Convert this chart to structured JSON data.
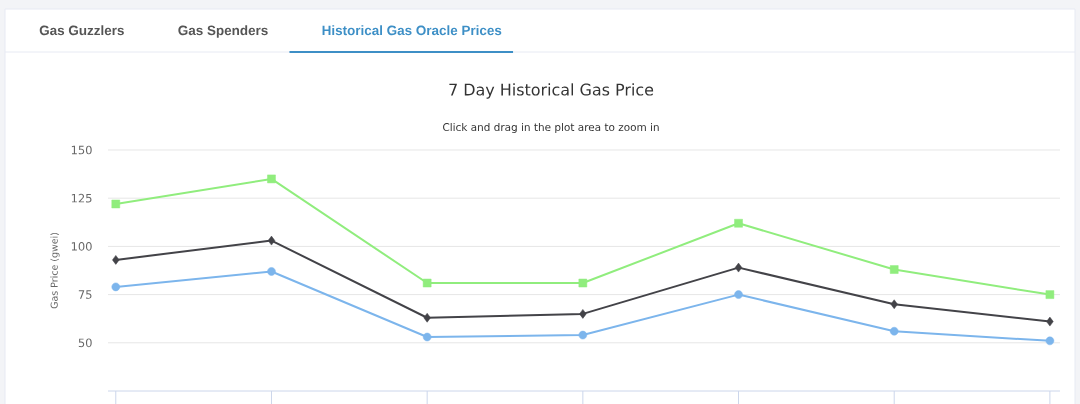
{
  "chart_data": {
    "type": "line",
    "title": "7 Day Historical Gas Price",
    "subtitle": "Click and drag in the plot area to zoom in",
    "annotations": [
      "Gas Guzzlers",
      "Gas Spenders",
      "Historical Gas Oracle Prices"
    ],
    "ylabel": "Gas Price (gwei)",
    "categories": [
      null,
      null,
      null,
      null,
      null,
      null,
      null
    ],
    "series": [
      {
        "color": "#90ed7d",
        "marker": "square",
        "values": [
          122,
          135,
          81,
          81,
          112,
          88,
          75
        ]
      },
      {
        "color": "#434348",
        "marker": "diamond",
        "values": [
          93,
          103,
          63,
          65,
          89,
          70,
          61
        ]
      },
      {
        "color": "#7cb5ec",
        "marker": "circle",
        "values": [
          79,
          87,
          53,
          54,
          75,
          56,
          51
        ]
      }
    ],
    "ylim": [
      25,
      150
    ],
    "yticks": [
      50,
      75,
      100,
      125,
      150
    ],
    "grid": "y"
  }
}
